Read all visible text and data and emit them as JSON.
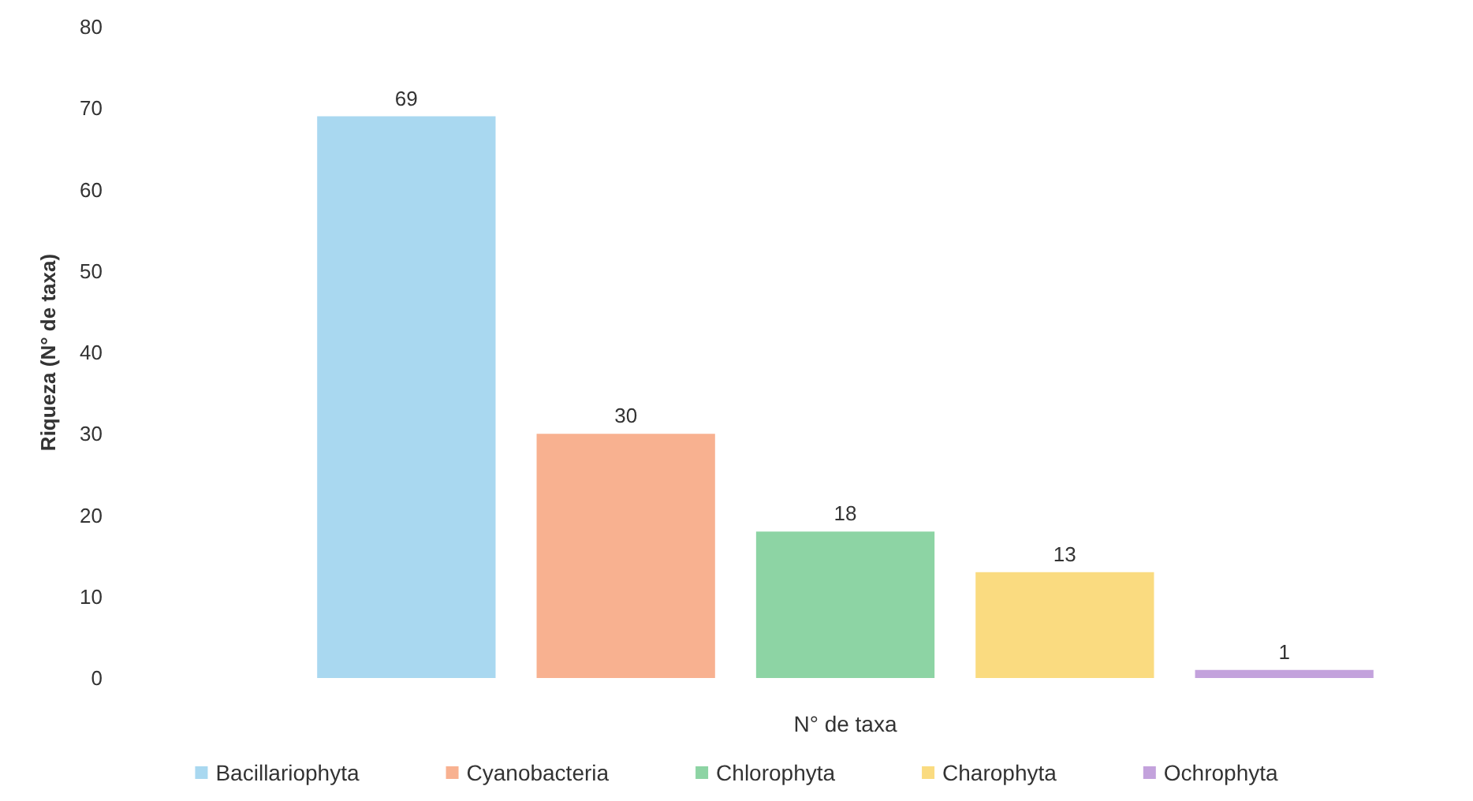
{
  "chart_data": {
    "type": "bar",
    "ylabel": "Riqueza (N° de taxa)",
    "xlabel": "N° de taxa",
    "categories": [
      null
    ],
    "series": [
      {
        "name": "Bacillariophyta",
        "color": "#a9d8f0",
        "values": [
          69
        ]
      },
      {
        "name": "Cyanobacteria",
        "color": "#f8b190",
        "values": [
          30
        ]
      },
      {
        "name": "Chlorophyta",
        "color": "#8dd4a4",
        "values": [
          18
        ]
      },
      {
        "name": "Charophyta",
        "color": "#fadb80",
        "values": [
          13
        ]
      },
      {
        "name": "Ochrophyta",
        "color": "#c3a2dc",
        "values": [
          1
        ]
      }
    ],
    "ylim": [
      0,
      80
    ],
    "yticks": [
      0,
      10,
      20,
      30,
      40,
      50,
      60,
      70,
      80
    ],
    "grid": false,
    "legend": "bottom",
    "data_labels": true
  }
}
